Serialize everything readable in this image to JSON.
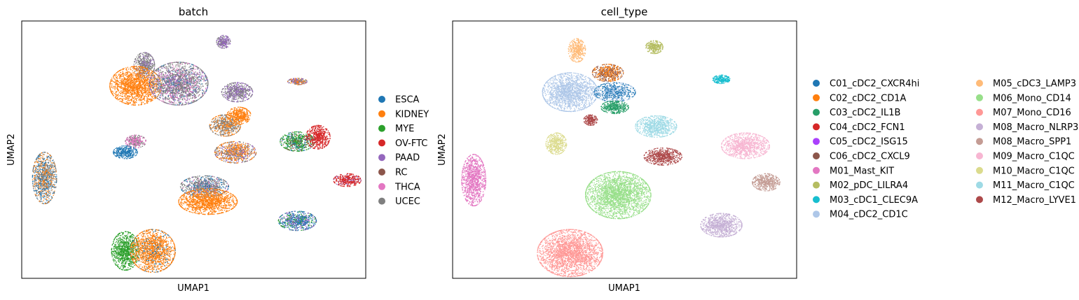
{
  "chart_data": [
    {
      "type": "scatter",
      "title": "batch",
      "xlabel": "UMAP1",
      "ylabel": "UMAP2",
      "grid": false,
      "ticks": false,
      "legend_position": "right",
      "series": [
        {
          "name": "ESCA",
          "color": "#1f77b4"
        },
        {
          "name": "KIDNEY",
          "color": "#ff7f0e"
        },
        {
          "name": "MYE",
          "color": "#2ca02c"
        },
        {
          "name": "OV-FTC",
          "color": "#d62728"
        },
        {
          "name": "PAAD",
          "color": "#9467bd"
        },
        {
          "name": "RC",
          "color": "#8c564b"
        },
        {
          "name": "THCA",
          "color": "#e377c2"
        },
        {
          "name": "UCEC",
          "color": "#7f7f7f"
        }
      ],
      "clusters": [
        {
          "cx": 0.355,
          "cy": 0.205,
          "rx": 0.03,
          "ry": 0.06,
          "mix": [
            [
              "UCEC",
              0.7
            ],
            [
              "PAAD",
              0.3
            ]
          ]
        },
        {
          "cx": 0.585,
          "cy": 0.095,
          "rx": 0.02,
          "ry": 0.03,
          "mix": [
            [
              "PAAD",
              0.6
            ],
            [
              "UCEC",
              0.4
            ]
          ]
        },
        {
          "cx": 0.33,
          "cy": 0.3,
          "rx": 0.075,
          "ry": 0.09,
          "mix": [
            [
              "KIDNEY",
              1.0
            ]
          ]
        },
        {
          "cx": 0.455,
          "cy": 0.29,
          "rx": 0.085,
          "ry": 0.1,
          "mix": [
            [
              "UCEC",
              0.6
            ],
            [
              "THCA",
              0.15
            ],
            [
              "PAAD",
              0.15
            ],
            [
              "ESCA",
              0.1
            ]
          ]
        },
        {
          "cx": 0.625,
          "cy": 0.33,
          "rx": 0.045,
          "ry": 0.045,
          "mix": [
            [
              "UCEC",
              0.5
            ],
            [
              "PAAD",
              0.5
            ]
          ]
        },
        {
          "cx": 0.8,
          "cy": 0.28,
          "rx": 0.028,
          "ry": 0.015,
          "mix": [
            [
              "PAAD",
              0.4
            ],
            [
              "UCEC",
              0.3
            ],
            [
              "KIDNEY",
              0.3
            ]
          ]
        },
        {
          "cx": 0.59,
          "cy": 0.485,
          "rx": 0.045,
          "ry": 0.05,
          "mix": [
            [
              "UCEC",
              0.6
            ],
            [
              "KIDNEY",
              0.4
            ]
          ]
        },
        {
          "cx": 0.63,
          "cy": 0.44,
          "rx": 0.035,
          "ry": 0.04,
          "mix": [
            [
              "KIDNEY",
              1.0
            ]
          ]
        },
        {
          "cx": 0.33,
          "cy": 0.56,
          "rx": 0.03,
          "ry": 0.03,
          "mix": [
            [
              "THCA",
              0.6
            ],
            [
              "UCEC",
              0.4
            ]
          ]
        },
        {
          "cx": 0.3,
          "cy": 0.61,
          "rx": 0.035,
          "ry": 0.03,
          "mix": [
            [
              "ESCA",
              1.0
            ]
          ]
        },
        {
          "cx": 0.62,
          "cy": 0.61,
          "rx": 0.06,
          "ry": 0.05,
          "mix": [
            [
              "KIDNEY",
              0.5
            ],
            [
              "UCEC",
              0.3
            ],
            [
              "PAAD",
              0.2
            ]
          ]
        },
        {
          "cx": 0.8,
          "cy": 0.56,
          "rx": 0.05,
          "ry": 0.045,
          "mix": [
            [
              "MYE",
              0.6
            ],
            [
              "ESCA",
              0.2
            ],
            [
              "RC",
              0.2
            ]
          ]
        },
        {
          "cx": 0.86,
          "cy": 0.54,
          "rx": 0.035,
          "ry": 0.055,
          "mix": [
            [
              "OV-FTC",
              1.0
            ]
          ]
        },
        {
          "cx": 0.945,
          "cy": 0.74,
          "rx": 0.04,
          "ry": 0.03,
          "mix": [
            [
              "OV-FTC",
              0.85
            ],
            [
              "PAAD",
              0.15
            ]
          ]
        },
        {
          "cx": 0.53,
          "cy": 0.77,
          "rx": 0.07,
          "ry": 0.05,
          "mix": [
            [
              "UCEC",
              0.6
            ],
            [
              "ESCA",
              0.25
            ],
            [
              "THCA",
              0.15
            ]
          ]
        },
        {
          "cx": 0.54,
          "cy": 0.84,
          "rx": 0.085,
          "ry": 0.06,
          "mix": [
            [
              "KIDNEY",
              1.0
            ]
          ]
        },
        {
          "cx": 0.8,
          "cy": 0.93,
          "rx": 0.055,
          "ry": 0.045,
          "mix": [
            [
              "ESCA",
              0.5
            ],
            [
              "PAAD",
              0.3
            ],
            [
              "MYE",
              0.2
            ]
          ]
        },
        {
          "cx": 0.3,
          "cy": 1.07,
          "rx": 0.04,
          "ry": 0.09,
          "mix": [
            [
              "MYE",
              1.0
            ]
          ]
        },
        {
          "cx": 0.38,
          "cy": 1.07,
          "rx": 0.065,
          "ry": 0.1,
          "mix": [
            [
              "KIDNEY",
              0.85
            ],
            [
              "ESCA",
              0.15
            ]
          ]
        },
        {
          "cx": 0.065,
          "cy": 0.73,
          "rx": 0.035,
          "ry": 0.12,
          "mix": [
            [
              "UCEC",
              0.4
            ],
            [
              "ESCA",
              0.3
            ],
            [
              "KIDNEY",
              0.3
            ]
          ]
        }
      ]
    },
    {
      "type": "scatter",
      "title": "cell_type",
      "xlabel": "UMAP1",
      "ylabel": "UMAP2",
      "grid": false,
      "ticks": false,
      "legend_position": "right",
      "series": [
        {
          "name": "C01_cDC2_CXCR4hi",
          "color": "#1f77b4"
        },
        {
          "name": "C02_cDC2_CD1A",
          "color": "#ff7f0e"
        },
        {
          "name": "C03_cDC2_IL1B",
          "color": "#279e68"
        },
        {
          "name": "C04_cDC2_FCN1",
          "color": "#d62728"
        },
        {
          "name": "C05_cDC2_ISG15",
          "color": "#aa40fc"
        },
        {
          "name": "C06_cDC2_CXCL9",
          "color": "#8c564b"
        },
        {
          "name": "M01_Mast_KIT",
          "color": "#e377c2"
        },
        {
          "name": "M02_pDC_LILRA4",
          "color": "#b5bd61"
        },
        {
          "name": "M03_cDC1_CLEC9A",
          "color": "#17becf"
        },
        {
          "name": "M04_cDC2_CD1C",
          "color": "#aec7e8"
        },
        {
          "name": "M05_cDC3_LAMP3",
          "color": "#ffbb78"
        },
        {
          "name": "M06_Mono_CD14",
          "color": "#98df8a"
        },
        {
          "name": "M07_Mono_CD16",
          "color": "#ff9896"
        },
        {
          "name": "M08_Macro_NLRP3",
          "color": "#c5b0d5"
        },
        {
          "name": "M08_Macro_SPP1",
          "color": "#c49c94"
        },
        {
          "name": "M09_Macro_C1QC",
          "color": "#f7b6d2"
        },
        {
          "name": "M10_Macro_C1QC",
          "color": "#dbdb8d"
        },
        {
          "name": "M11_Macro_C1QC",
          "color": "#9edae5"
        },
        {
          "name": "M12_Macro_LYVE1",
          "color": "#ad494a"
        }
      ],
      "clusters": [
        {
          "cx": 0.36,
          "cy": 0.135,
          "rx": 0.025,
          "ry": 0.055,
          "mix": [
            [
              "M05_cDC3_LAMP3",
              1.0
            ]
          ]
        },
        {
          "cx": 0.585,
          "cy": 0.12,
          "rx": 0.025,
          "ry": 0.03,
          "mix": [
            [
              "M02_pDC_LILRA4",
              1.0
            ]
          ]
        },
        {
          "cx": 0.34,
          "cy": 0.33,
          "rx": 0.08,
          "ry": 0.09,
          "mix": [
            [
              "M04_cDC2_CD1C",
              1.0
            ]
          ]
        },
        {
          "cx": 0.45,
          "cy": 0.24,
          "rx": 0.045,
          "ry": 0.04,
          "mix": [
            [
              "C06_cDC2_CXCL9",
              0.5
            ],
            [
              "C02_cDC2_CD1A",
              0.5
            ]
          ]
        },
        {
          "cx": 0.47,
          "cy": 0.33,
          "rx": 0.06,
          "ry": 0.045,
          "mix": [
            [
              "C01_cDC2_CXCR4hi",
              0.6
            ],
            [
              "M04_cDC2_CD1C",
              0.4
            ]
          ]
        },
        {
          "cx": 0.47,
          "cy": 0.4,
          "rx": 0.04,
          "ry": 0.03,
          "mix": [
            [
              "C03_cDC2_IL1B",
              1.0
            ]
          ]
        },
        {
          "cx": 0.4,
          "cy": 0.46,
          "rx": 0.02,
          "ry": 0.025,
          "mix": [
            [
              "M12_Macro_LYVE1",
              1.0
            ]
          ]
        },
        {
          "cx": 0.78,
          "cy": 0.27,
          "rx": 0.025,
          "ry": 0.02,
          "mix": [
            [
              "M03_cDC1_CLEC9A",
              1.0
            ]
          ]
        },
        {
          "cx": 0.59,
          "cy": 0.49,
          "rx": 0.06,
          "ry": 0.05,
          "mix": [
            [
              "M11_Macro_C1QC",
              1.0
            ]
          ]
        },
        {
          "cx": 0.3,
          "cy": 0.57,
          "rx": 0.03,
          "ry": 0.05,
          "mix": [
            [
              "M10_Macro_C1QC",
              1.0
            ]
          ]
        },
        {
          "cx": 0.61,
          "cy": 0.63,
          "rx": 0.055,
          "ry": 0.04,
          "mix": [
            [
              "M12_Macro_LYVE1",
              1.0
            ]
          ]
        },
        {
          "cx": 0.85,
          "cy": 0.58,
          "rx": 0.07,
          "ry": 0.06,
          "mix": [
            [
              "M09_Macro_C1QC",
              1.0
            ]
          ]
        },
        {
          "cx": 0.91,
          "cy": 0.75,
          "rx": 0.04,
          "ry": 0.04,
          "mix": [
            [
              "M08_Macro_SPP1",
              1.0
            ]
          ]
        },
        {
          "cx": 0.48,
          "cy": 0.81,
          "rx": 0.095,
          "ry": 0.11,
          "mix": [
            [
              "M06_Mono_CD14",
              1.0
            ]
          ]
        },
        {
          "cx": 0.78,
          "cy": 0.95,
          "rx": 0.06,
          "ry": 0.055,
          "mix": [
            [
              "M08_Macro_NLRP3",
              1.0
            ]
          ]
        },
        {
          "cx": 0.34,
          "cy": 1.08,
          "rx": 0.095,
          "ry": 0.11,
          "mix": [
            [
              "M07_Mono_CD16",
              1.0
            ]
          ]
        },
        {
          "cx": 0.06,
          "cy": 0.74,
          "rx": 0.035,
          "ry": 0.12,
          "mix": [
            [
              "M01_Mast_KIT",
              1.0
            ]
          ]
        }
      ]
    }
  ]
}
